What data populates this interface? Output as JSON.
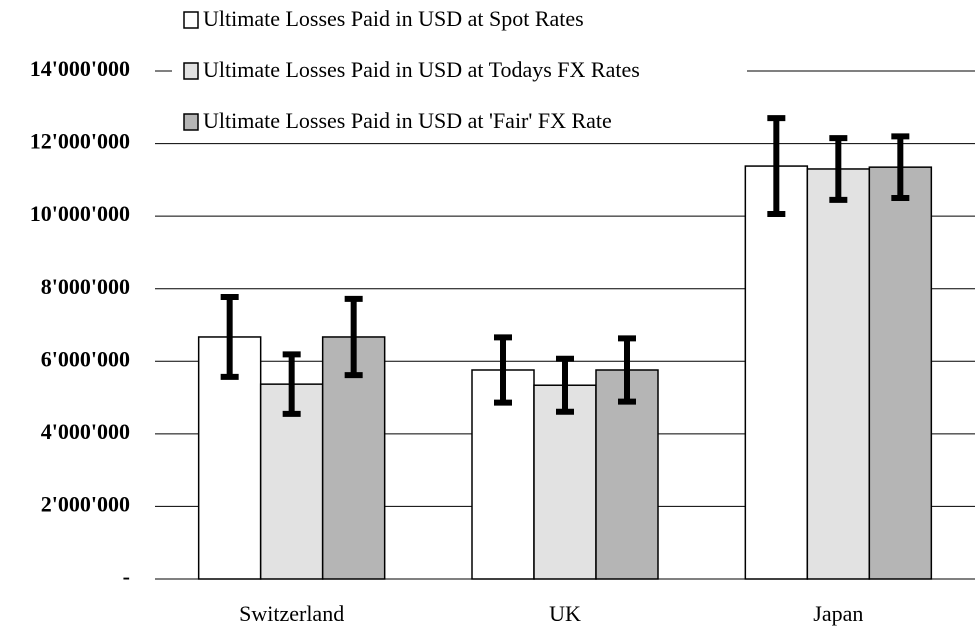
{
  "chart_data": {
    "type": "bar",
    "categories": [
      "Switzerland",
      "UK",
      "Japan"
    ],
    "series": [
      {
        "name": "Ultimate Losses Paid in USD at Spot Rates",
        "color": "#ffffff",
        "values": [
          6670000,
          5760000,
          11380000
        ],
        "errors": [
          1100000,
          900000,
          1320000
        ]
      },
      {
        "name": "Ultimate Losses Paid in USD at Todays FX Rates",
        "color": "#e2e2e2",
        "values": [
          5370000,
          5340000,
          11300000
        ],
        "errors": [
          820000,
          730000,
          850000
        ]
      },
      {
        "name": "Ultimate Losses Paid in USD at 'Fair' FX Rate",
        "color": "#b5b5b5",
        "values": [
          6670000,
          5760000,
          11350000
        ],
        "errors": [
          1050000,
          870000,
          850000
        ]
      }
    ],
    "ylim": [
      0,
      14000000
    ],
    "yticks": [
      {
        "value": 0,
        "label": "-"
      },
      {
        "value": 2000000,
        "label": "2'000'000"
      },
      {
        "value": 4000000,
        "label": "4'000'000"
      },
      {
        "value": 6000000,
        "label": "6'000'000"
      },
      {
        "value": 8000000,
        "label": "8'000'000"
      },
      {
        "value": 10000000,
        "label": "10'000'000"
      },
      {
        "value": 12000000,
        "label": "12'000'000"
      },
      {
        "value": 14000000,
        "label": "14'000'000"
      }
    ],
    "grid": true
  }
}
